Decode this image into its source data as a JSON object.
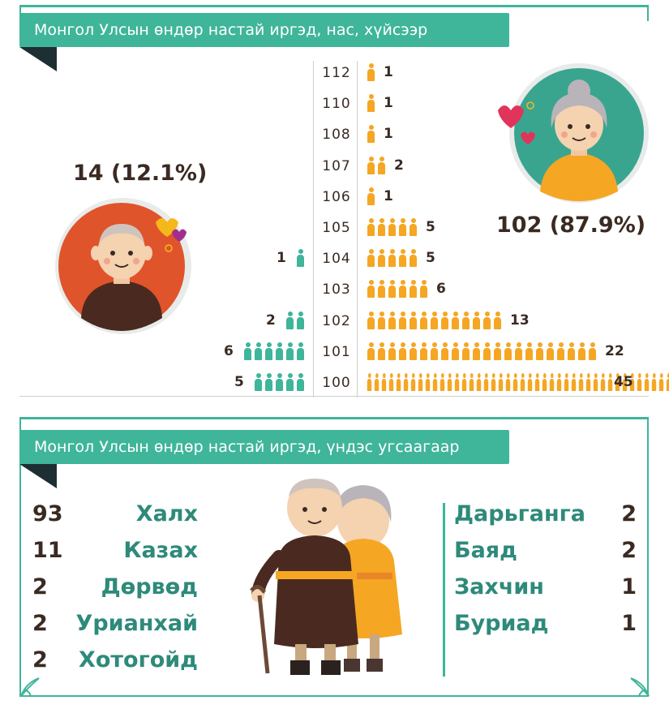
{
  "top": {
    "title": "Монгол Улсын өндөр настай иргэд, нас, хүйсээр",
    "male_total": "14 (12.1%)",
    "female_total": "102 (87.9%)"
  },
  "bottom": {
    "title": "Монгол Улсын өндөр настай иргэд, үндэс угсаагаар",
    "left": [
      {
        "count": "93",
        "name": "Халх"
      },
      {
        "count": "11",
        "name": "Казах"
      },
      {
        "count": "2",
        "name": "Дөрвөд"
      },
      {
        "count": "2",
        "name": "Урианхай"
      },
      {
        "count": "2",
        "name": "Хотогойд"
      }
    ],
    "right": [
      {
        "name": "Дарьганга",
        "count": "2"
      },
      {
        "name": "Баяд",
        "count": "2"
      },
      {
        "name": "Захчин",
        "count": "1"
      },
      {
        "name": "Буриад",
        "count": "1"
      }
    ]
  },
  "colors": {
    "teal": "#3fb59a",
    "orange": "#f5a623",
    "male_circle": "#e0542b",
    "female_circle": "#3aa58f",
    "dark": "#3a2a22"
  },
  "chart_data": [
    {
      "type": "bar",
      "title": "Монгол Улсын өндөр настай иргэд, нас, хүйсээр",
      "categories": [
        "112",
        "110",
        "108",
        "107",
        "106",
        "105",
        "104",
        "103",
        "102",
        "101",
        "100"
      ],
      "series": [
        {
          "values": [
            0,
            0,
            0,
            0,
            0,
            0,
            1,
            0,
            2,
            6,
            5
          ],
          "color": "#3fb59a"
        },
        {
          "values": [
            1,
            1,
            1,
            2,
            1,
            5,
            5,
            6,
            13,
            22,
            45
          ],
          "color": "#f5a623"
        }
      ]
    },
    {
      "type": "table",
      "title": "Монгол Улсын өндөр настай иргэд, үндэс угсаагаар",
      "categories": [
        "Халх",
        "Казах",
        "Дөрвөд",
        "Урианхай",
        "Хотогойд",
        "Дарьганга",
        "Баяд",
        "Захчин",
        "Буриад"
      ],
      "values": [
        93,
        11,
        2,
        2,
        2,
        2,
        2,
        1,
        1
      ]
    }
  ]
}
